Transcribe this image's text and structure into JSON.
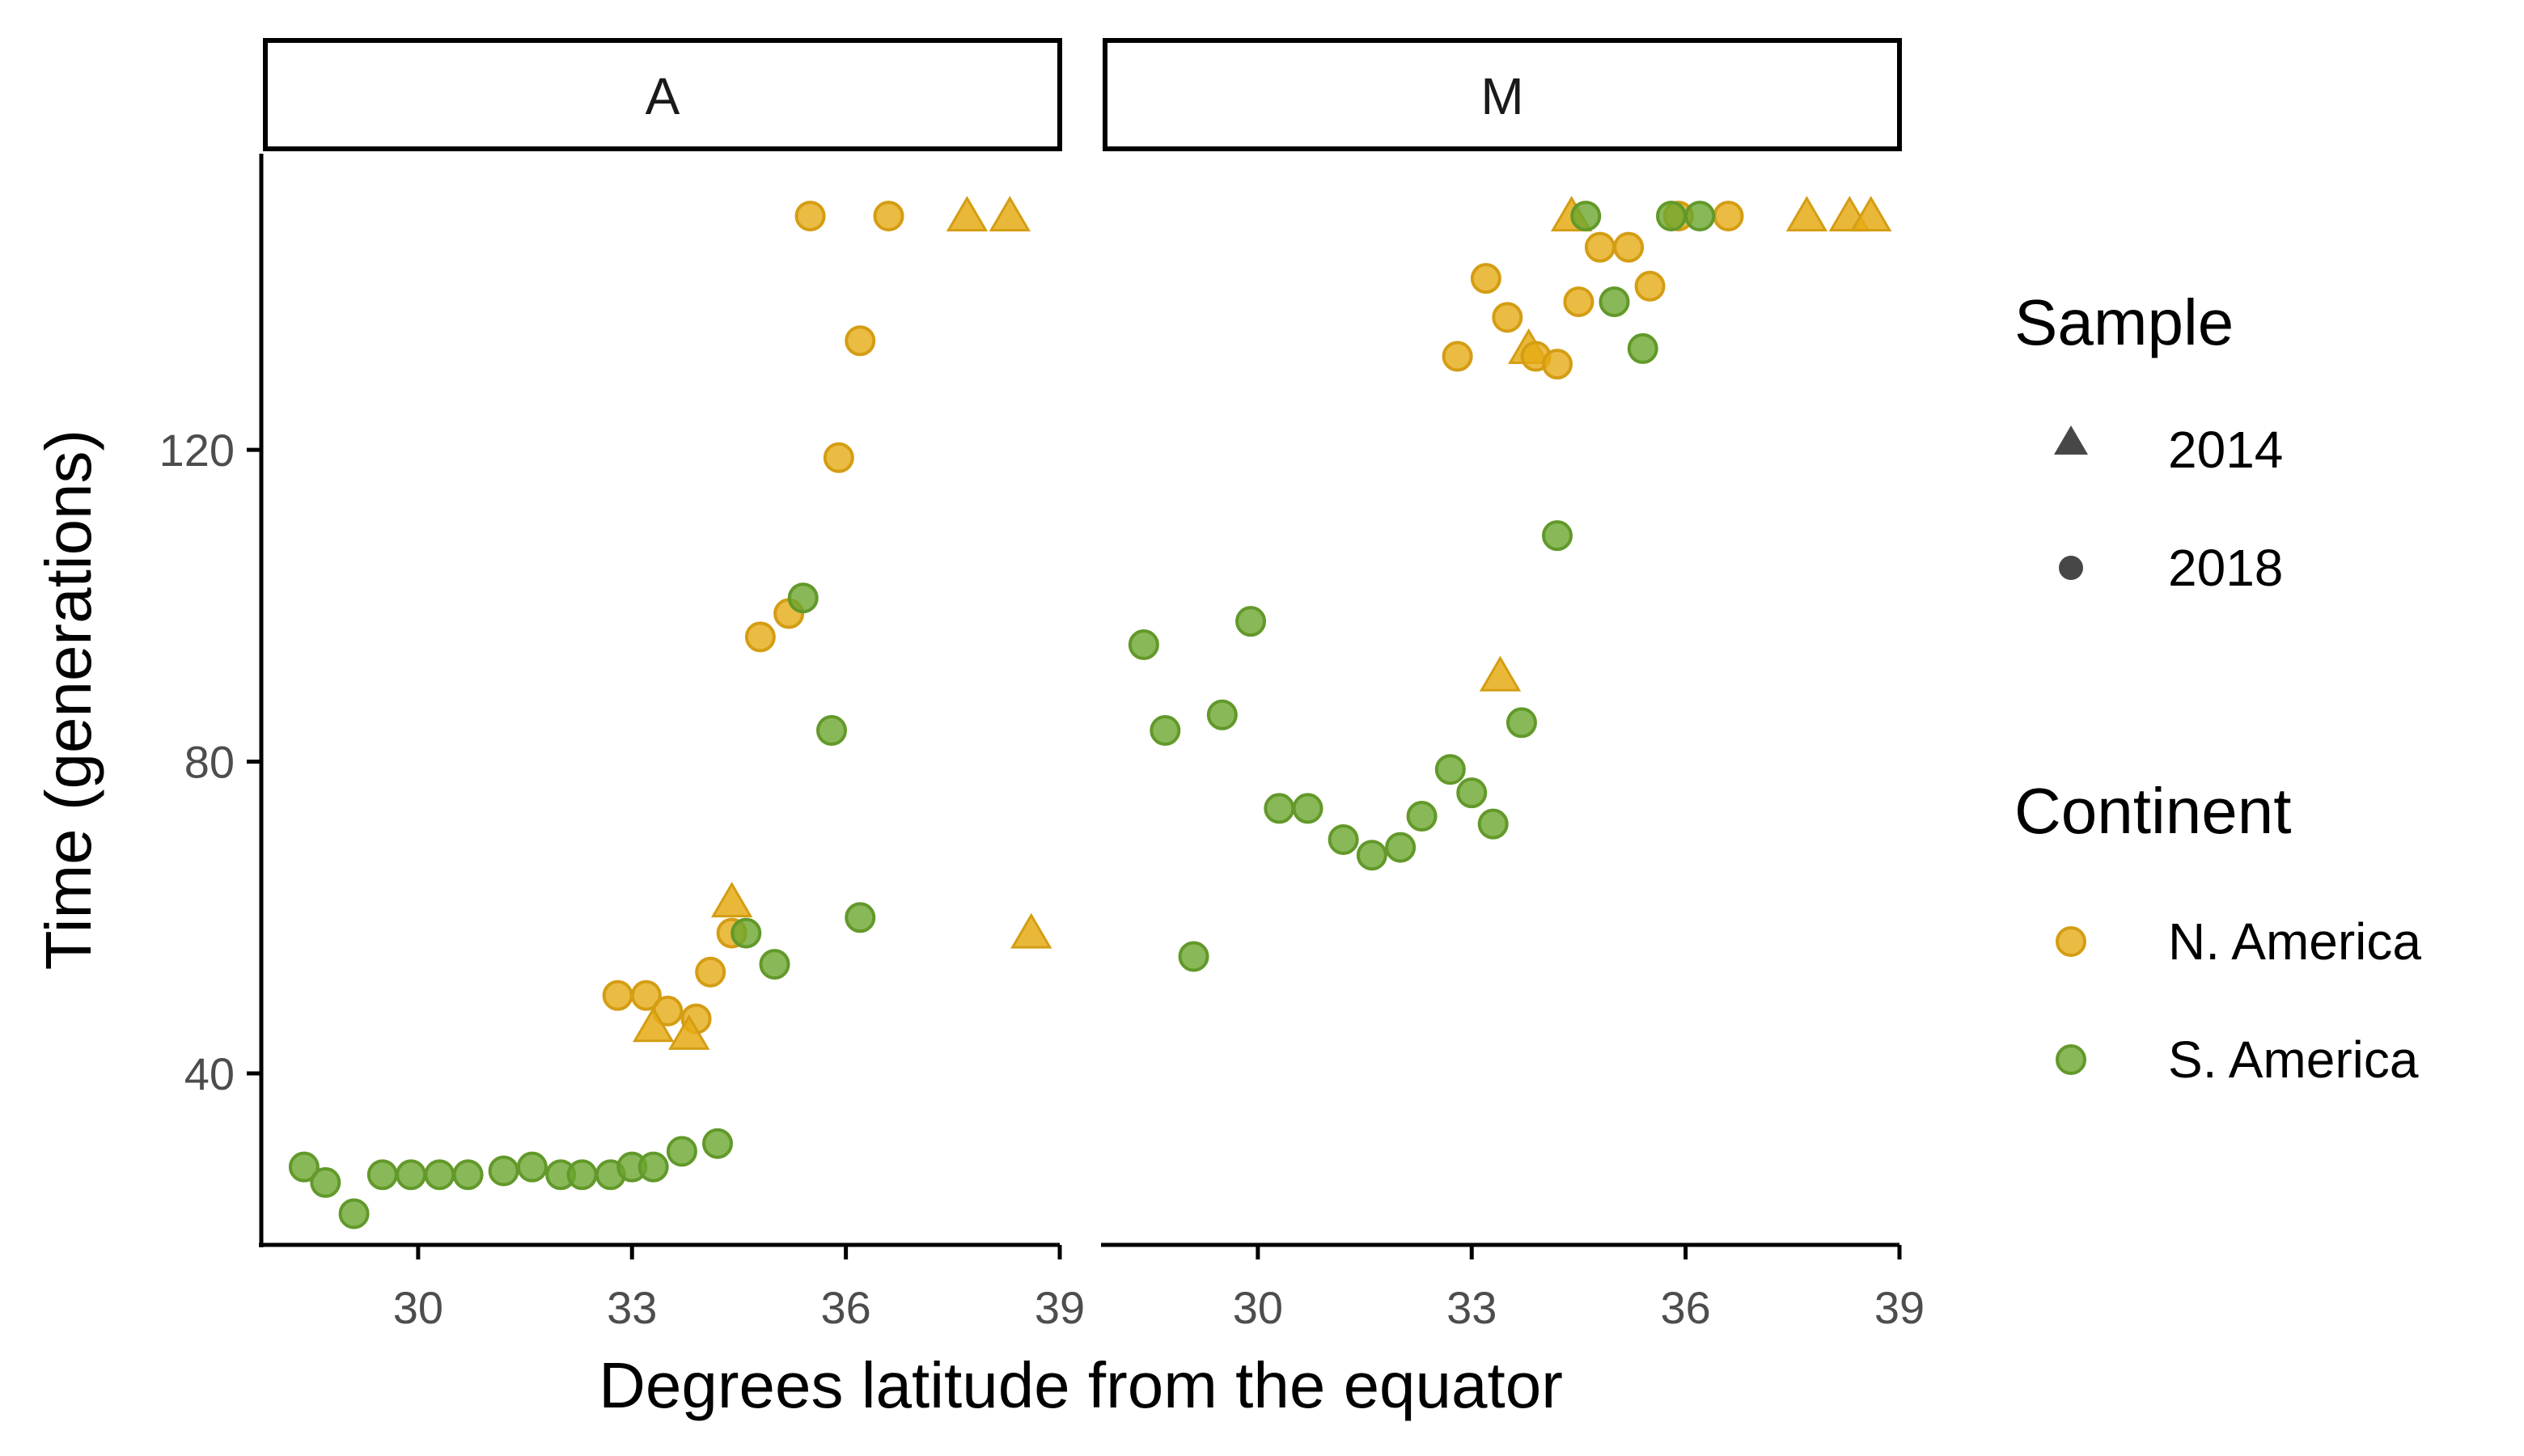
{
  "chart_data": {
    "type": "scatter",
    "xlabel": "Degrees latitude from the equator",
    "ylabel": "Time (generations)",
    "xlim": [
      27.8,
      39
    ],
    "ylim": [
      18,
      158
    ],
    "x_ticks": [
      30,
      33,
      36,
      39
    ],
    "y_ticks": [
      40,
      80,
      120
    ],
    "grid": false,
    "legend_position": "right",
    "colors": {
      "N. America": "#E6AB15",
      "S. America": "#6BA62E"
    },
    "legend": {
      "sample_title": "Sample",
      "sample_items": [
        {
          "label": "2014",
          "shape": "triangle"
        },
        {
          "label": "2018",
          "shape": "circle"
        }
      ],
      "continent_title": "Continent",
      "continent_items": [
        {
          "label": "N. America",
          "color": "#E6AB15"
        },
        {
          "label": "S. America",
          "color": "#6BA62E"
        }
      ]
    },
    "panels": [
      {
        "label": "A",
        "points": [
          {
            "x": 35.5,
            "y": 150,
            "continent": "N. America",
            "sample": "2018"
          },
          {
            "x": 36.6,
            "y": 150,
            "continent": "N. America",
            "sample": "2018"
          },
          {
            "x": 37.7,
            "y": 150,
            "continent": "N. America",
            "sample": "2014"
          },
          {
            "x": 38.3,
            "y": 150,
            "continent": "N. America",
            "sample": "2014"
          },
          {
            "x": 36.2,
            "y": 134,
            "continent": "N. America",
            "sample": "2018"
          },
          {
            "x": 35.9,
            "y": 119,
            "continent": "N. America",
            "sample": "2018"
          },
          {
            "x": 35.2,
            "y": 99,
            "continent": "N. America",
            "sample": "2018"
          },
          {
            "x": 34.8,
            "y": 96,
            "continent": "N. America",
            "sample": "2018"
          },
          {
            "x": 34.4,
            "y": 62,
            "continent": "N. America",
            "sample": "2014"
          },
          {
            "x": 34.4,
            "y": 58,
            "continent": "N. America",
            "sample": "2018"
          },
          {
            "x": 34.1,
            "y": 53,
            "continent": "N. America",
            "sample": "2018"
          },
          {
            "x": 38.6,
            "y": 58,
            "continent": "N. America",
            "sample": "2014"
          },
          {
            "x": 32.8,
            "y": 50,
            "continent": "N. America",
            "sample": "2018"
          },
          {
            "x": 33.2,
            "y": 50,
            "continent": "N. America",
            "sample": "2018"
          },
          {
            "x": 33.5,
            "y": 48,
            "continent": "N. America",
            "sample": "2018"
          },
          {
            "x": 33.9,
            "y": 47,
            "continent": "N. America",
            "sample": "2018"
          },
          {
            "x": 33.3,
            "y": 46,
            "continent": "N. America",
            "sample": "2014"
          },
          {
            "x": 33.8,
            "y": 45,
            "continent": "N. America",
            "sample": "2014"
          },
          {
            "x": 35.4,
            "y": 101,
            "continent": "S. America",
            "sample": "2018"
          },
          {
            "x": 35.8,
            "y": 84,
            "continent": "S. America",
            "sample": "2018"
          },
          {
            "x": 36.2,
            "y": 60,
            "continent": "S. America",
            "sample": "2018"
          },
          {
            "x": 34.6,
            "y": 58,
            "continent": "S. America",
            "sample": "2018"
          },
          {
            "x": 35.0,
            "y": 54,
            "continent": "S. America",
            "sample": "2018"
          },
          {
            "x": 28.4,
            "y": 28,
            "continent": "S. America",
            "sample": "2018"
          },
          {
            "x": 28.7,
            "y": 26,
            "continent": "S. America",
            "sample": "2018"
          },
          {
            "x": 29.1,
            "y": 22,
            "continent": "S. America",
            "sample": "2018"
          },
          {
            "x": 29.5,
            "y": 27,
            "continent": "S. America",
            "sample": "2018"
          },
          {
            "x": 29.9,
            "y": 27,
            "continent": "S. America",
            "sample": "2018"
          },
          {
            "x": 30.3,
            "y": 27,
            "continent": "S. America",
            "sample": "2018"
          },
          {
            "x": 30.7,
            "y": 27,
            "continent": "S. America",
            "sample": "2018"
          },
          {
            "x": 31.2,
            "y": 27.5,
            "continent": "S. America",
            "sample": "2018"
          },
          {
            "x": 31.6,
            "y": 28,
            "continent": "S. America",
            "sample": "2018"
          },
          {
            "x": 32.0,
            "y": 27,
            "continent": "S. America",
            "sample": "2018"
          },
          {
            "x": 32.3,
            "y": 27,
            "continent": "S. America",
            "sample": "2018"
          },
          {
            "x": 32.7,
            "y": 27,
            "continent": "S. America",
            "sample": "2018"
          },
          {
            "x": 33.0,
            "y": 28,
            "continent": "S. America",
            "sample": "2018"
          },
          {
            "x": 33.3,
            "y": 28,
            "continent": "S. America",
            "sample": "2018"
          },
          {
            "x": 33.7,
            "y": 30,
            "continent": "S. America",
            "sample": "2018"
          },
          {
            "x": 34.2,
            "y": 31,
            "continent": "S. America",
            "sample": "2018"
          }
        ]
      },
      {
        "label": "M",
        "points": [
          {
            "x": 34.4,
            "y": 150,
            "continent": "N. America",
            "sample": "2014"
          },
          {
            "x": 35.9,
            "y": 150,
            "continent": "N. America",
            "sample": "2018"
          },
          {
            "x": 36.6,
            "y": 150,
            "continent": "N. America",
            "sample": "2018"
          },
          {
            "x": 37.7,
            "y": 150,
            "continent": "N. America",
            "sample": "2014"
          },
          {
            "x": 38.3,
            "y": 150,
            "continent": "N. America",
            "sample": "2014"
          },
          {
            "x": 38.6,
            "y": 150,
            "continent": "N. America",
            "sample": "2014"
          },
          {
            "x": 34.8,
            "y": 146,
            "continent": "N. America",
            "sample": "2018"
          },
          {
            "x": 35.2,
            "y": 146,
            "continent": "N. America",
            "sample": "2018"
          },
          {
            "x": 33.2,
            "y": 142,
            "continent": "N. America",
            "sample": "2018"
          },
          {
            "x": 35.5,
            "y": 141,
            "continent": "N. America",
            "sample": "2018"
          },
          {
            "x": 34.5,
            "y": 139,
            "continent": "N. America",
            "sample": "2018"
          },
          {
            "x": 33.5,
            "y": 137,
            "continent": "N. America",
            "sample": "2018"
          },
          {
            "x": 33.8,
            "y": 133,
            "continent": "N. America",
            "sample": "2014"
          },
          {
            "x": 33.9,
            "y": 132,
            "continent": "N. America",
            "sample": "2018"
          },
          {
            "x": 32.8,
            "y": 132,
            "continent": "N. America",
            "sample": "2018"
          },
          {
            "x": 34.2,
            "y": 131,
            "continent": "N. America",
            "sample": "2018"
          },
          {
            "x": 33.4,
            "y": 91,
            "continent": "N. America",
            "sample": "2014"
          },
          {
            "x": 34.6,
            "y": 150,
            "continent": "S. America",
            "sample": "2018"
          },
          {
            "x": 35.8,
            "y": 150,
            "continent": "S. America",
            "sample": "2018"
          },
          {
            "x": 36.2,
            "y": 150,
            "continent": "S. America",
            "sample": "2018"
          },
          {
            "x": 35.0,
            "y": 139,
            "continent": "S. America",
            "sample": "2018"
          },
          {
            "x": 35.4,
            "y": 133,
            "continent": "S. America",
            "sample": "2018"
          },
          {
            "x": 34.2,
            "y": 109,
            "continent": "S. America",
            "sample": "2018"
          },
          {
            "x": 28.4,
            "y": 95,
            "continent": "S. America",
            "sample": "2018"
          },
          {
            "x": 29.9,
            "y": 98,
            "continent": "S. America",
            "sample": "2018"
          },
          {
            "x": 28.7,
            "y": 84,
            "continent": "S. America",
            "sample": "2018"
          },
          {
            "x": 29.5,
            "y": 86,
            "continent": "S. America",
            "sample": "2018"
          },
          {
            "x": 33.7,
            "y": 85,
            "continent": "S. America",
            "sample": "2018"
          },
          {
            "x": 32.7,
            "y": 79,
            "continent": "S. America",
            "sample": "2018"
          },
          {
            "x": 33.0,
            "y": 76,
            "continent": "S. America",
            "sample": "2018"
          },
          {
            "x": 30.3,
            "y": 74,
            "continent": "S. America",
            "sample": "2018"
          },
          {
            "x": 30.7,
            "y": 74,
            "continent": "S. America",
            "sample": "2018"
          },
          {
            "x": 32.3,
            "y": 73,
            "continent": "S. America",
            "sample": "2018"
          },
          {
            "x": 33.3,
            "y": 72,
            "continent": "S. America",
            "sample": "2018"
          },
          {
            "x": 31.2,
            "y": 70,
            "continent": "S. America",
            "sample": "2018"
          },
          {
            "x": 32.0,
            "y": 69,
            "continent": "S. America",
            "sample": "2018"
          },
          {
            "x": 31.6,
            "y": 68,
            "continent": "S. America",
            "sample": "2018"
          },
          {
            "x": 29.1,
            "y": 55,
            "continent": "S. America",
            "sample": "2018"
          }
        ]
      }
    ]
  }
}
